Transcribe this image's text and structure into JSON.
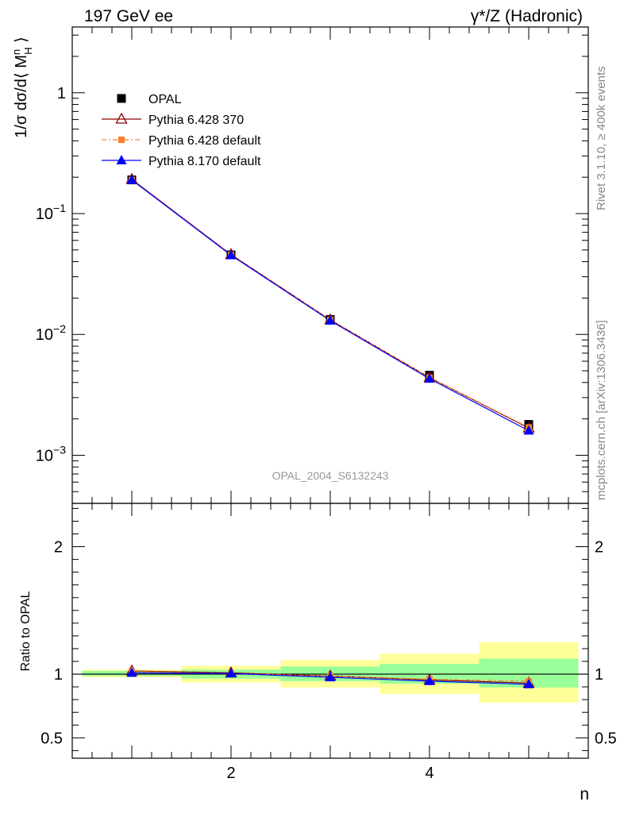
{
  "header": {
    "left_title": "197 GeV ee",
    "right_title": "γ*/Z (Hadronic)"
  },
  "side_labels": {
    "rivet": "Rivet 3.1.10, ≥ 400k events",
    "mcplots": "mcplots.cern.ch [arXiv:1306.3436]"
  },
  "watermark": "OPAL_2004_S6132243",
  "colors": {
    "data": "#000000",
    "pythia6_370": "#8b0000",
    "pythia6_default": "#ff7f2a",
    "pythia8": "#0000ff",
    "band_inner": "#99ff99",
    "band_outer": "#ffff99"
  },
  "chart_data": [
    {
      "type": "scatter",
      "panel": "main",
      "ylabel": "1/σ dσ/d⟨ M_H^n ⟩",
      "yscale": "log",
      "ylim": [
        0.0004,
        3.5
      ],
      "xlim": [
        0.4,
        5.6
      ],
      "y_tick_labels": [
        "10^-3",
        "10^-2",
        "10^-1",
        "1"
      ],
      "legend_position": "top-left",
      "x": [
        1,
        2,
        3,
        4,
        5
      ],
      "series": [
        {
          "name": "OPAL",
          "marker": "square",
          "values": [
            0.19,
            0.0455,
            0.0133,
            0.0046,
            0.0018
          ]
        },
        {
          "name": "Pythia 6.428 370",
          "marker": "open-triangle",
          "values": [
            0.192,
            0.0458,
            0.0132,
            0.0044,
            0.00168
          ]
        },
        {
          "name": "Pythia 6.428 default",
          "marker": "small-square",
          "values": [
            0.19,
            0.0455,
            0.0132,
            0.0044,
            0.0017
          ]
        },
        {
          "name": "Pythia 8.170 default",
          "marker": "filled-triangle",
          "values": [
            0.19,
            0.0452,
            0.013,
            0.0043,
            0.0016
          ]
        }
      ]
    },
    {
      "type": "line",
      "panel": "ratio",
      "ylabel": "Ratio to OPAL",
      "xlabel": "n",
      "ylim": [
        0.34,
        2.34
      ],
      "xlim": [
        0.4,
        5.6
      ],
      "y_ticks": [
        0.5,
        1,
        2
      ],
      "y_tick_labels": [
        "0.5",
        "1",
        "2"
      ],
      "x_ticks": [
        2,
        4
      ],
      "x_tick_labels": [
        "2",
        "4"
      ],
      "x": [
        1,
        2,
        3,
        4,
        5
      ],
      "bands": [
        {
          "bin": [
            0.5,
            1.5
          ],
          "inner": [
            0.985,
            1.025
          ],
          "outer": [
            0.975,
            1.035
          ]
        },
        {
          "bin": [
            1.5,
            2.5
          ],
          "inner": [
            0.965,
            1.035
          ],
          "outer": [
            0.935,
            1.065
          ]
        },
        {
          "bin": [
            2.5,
            3.5
          ],
          "inner": [
            0.945,
            1.06
          ],
          "outer": [
            0.895,
            1.11
          ]
        },
        {
          "bin": [
            3.5,
            4.5
          ],
          "inner": [
            0.925,
            1.08
          ],
          "outer": [
            0.845,
            1.16
          ]
        },
        {
          "bin": [
            4.5,
            5.5
          ],
          "inner": [
            0.895,
            1.12
          ],
          "outer": [
            0.775,
            1.25
          ]
        }
      ],
      "series": [
        {
          "name": "Pythia 6.428 370",
          "values": [
            1.025,
            1.01,
            0.985,
            0.955,
            0.93
          ]
        },
        {
          "name": "Pythia 6.428 default",
          "values": [
            1.02,
            1.005,
            0.985,
            0.96,
            0.945
          ]
        },
        {
          "name": "Pythia 8.170 default",
          "values": [
            1.01,
            1.005,
            0.975,
            0.945,
            0.92
          ]
        }
      ]
    }
  ]
}
